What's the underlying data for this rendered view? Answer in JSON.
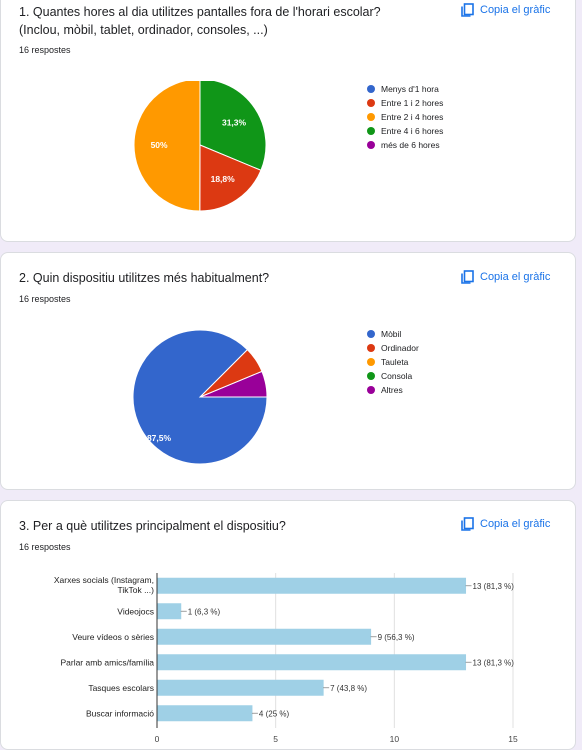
{
  "copy_label": "Copia el gràfic",
  "questions": [
    {
      "title": "1. Quantes hores al dia utilitzes pantalles fora de l'horari escolar? (Inclou, mòbil, tablet, ordinador, consoles, ...)",
      "count": "16 respostes"
    },
    {
      "title": "2. Quin dispositiu utilitzes més habitualment?",
      "count": "16 respostes"
    },
    {
      "title": "3. Per a què utilitzes principalment el dispositiu?",
      "count": "16 respostes"
    }
  ],
  "chart_data": [
    {
      "type": "pie",
      "categories": [
        "Menys d'1 hora",
        "Entre 1 i 2 hores",
        "Entre 2 i 4 hores",
        "Entre 4 i 6 hores",
        "més de 6 hores"
      ],
      "values": [
        0,
        18.8,
        50,
        31.3,
        0
      ],
      "labels": [
        "",
        "18,8%",
        "50%",
        "31,3%",
        ""
      ],
      "colors": [
        "#3366cc",
        "#dc3912",
        "#ff9900",
        "#109618",
        "#990099"
      ],
      "legend": "right"
    },
    {
      "type": "pie",
      "categories": [
        "Mòbil",
        "Ordinador",
        "Tauleta",
        "Consola",
        "Altres"
      ],
      "values": [
        87.5,
        6.25,
        0,
        0,
        6.25
      ],
      "labels": [
        "87,5%",
        "",
        "",
        "",
        ""
      ],
      "colors": [
        "#3366cc",
        "#dc3912",
        "#ff9900",
        "#109618",
        "#990099"
      ],
      "legend": "right"
    },
    {
      "type": "bar",
      "orientation": "horizontal",
      "categories": [
        "Xarxes socials (Instagram, TikTok ...)",
        "Videojocs",
        "Veure vídeos o sèries",
        "Parlar amb amics/família",
        "Tasques escolars",
        "Buscar informació"
      ],
      "category_lines": [
        [
          "Xarxes socials (Instagram,",
          "TikTok ...)"
        ],
        [
          "Videojocs"
        ],
        [
          "Veure vídeos o sèries"
        ],
        [
          "Parlar amb amics/família"
        ],
        [
          "Tasques escolars"
        ],
        [
          "Buscar informació"
        ]
      ],
      "values": [
        13,
        1,
        9,
        13,
        7,
        4
      ],
      "labels": [
        "13 (81,3 %)",
        "1 (6,3 %)",
        "9 (56,3 %)",
        "13 (81,3 %)",
        "7 (43,8 %)",
        "4 (25 %)"
      ],
      "xlim": [
        0,
        15
      ],
      "xticks": [
        0,
        5,
        10,
        15
      ],
      "color": "#9fd0e6",
      "grid": true
    }
  ]
}
